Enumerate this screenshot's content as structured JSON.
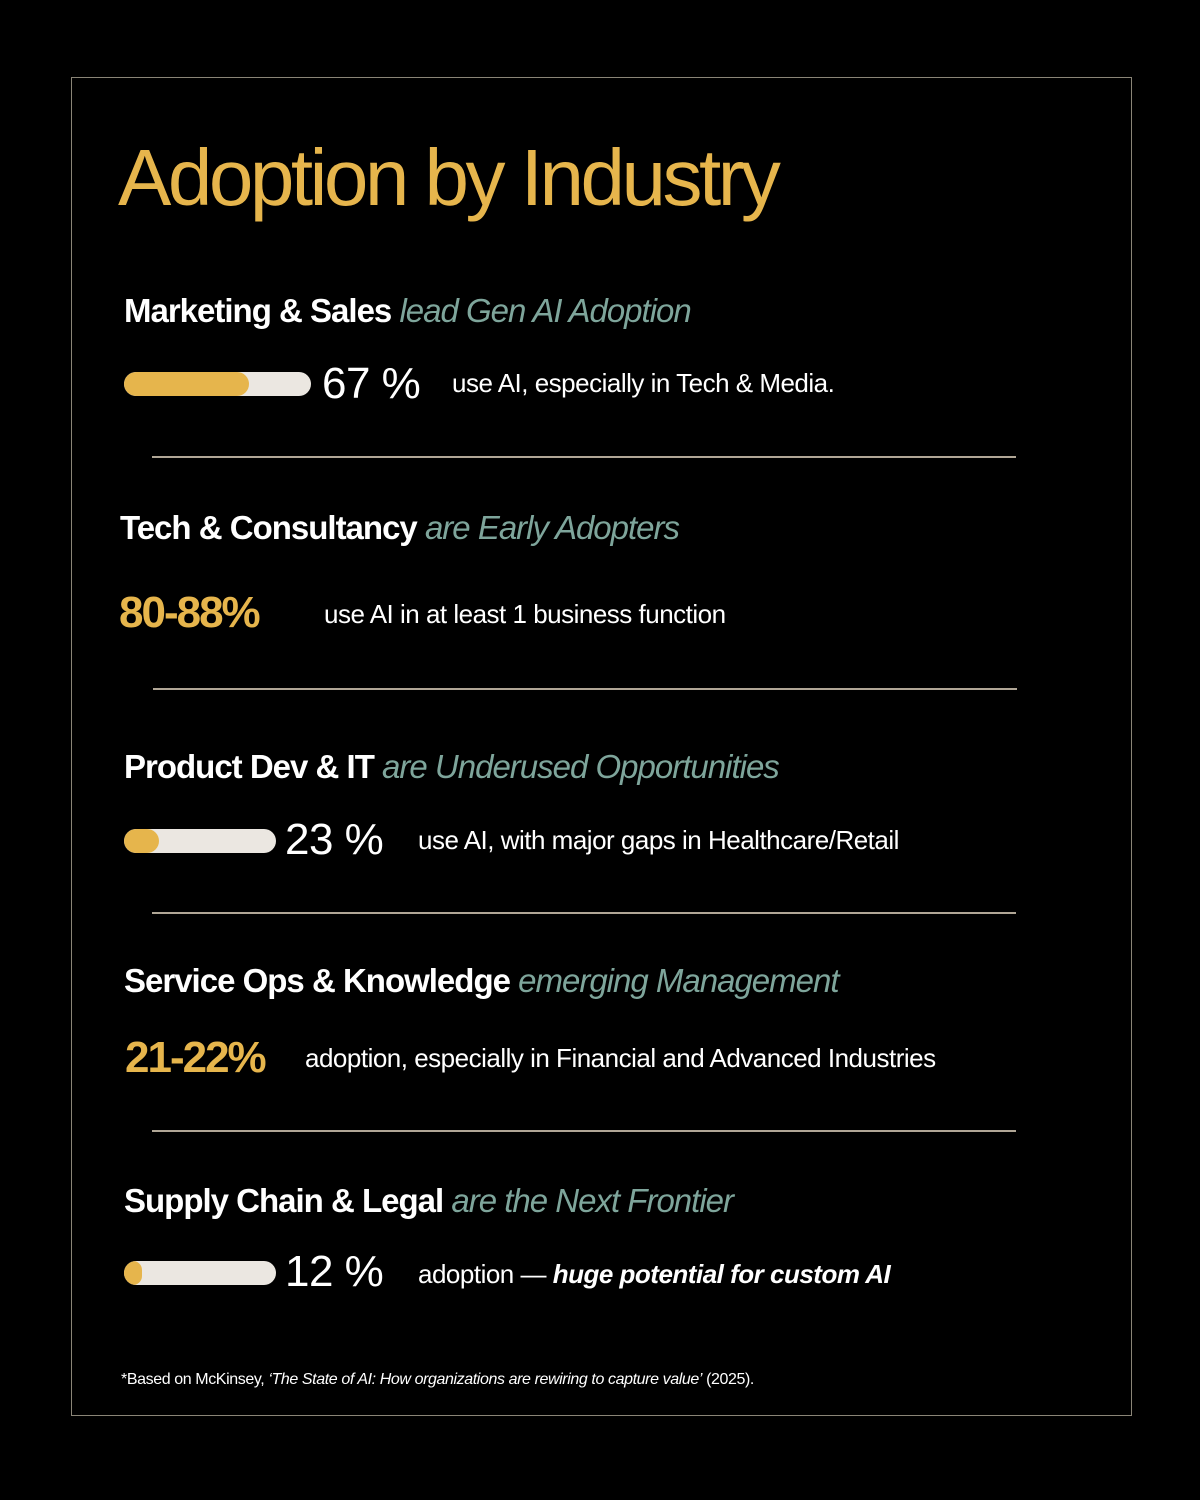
{
  "title": "Adoption by Industry",
  "colors": {
    "background": "#000000",
    "gold": "#e6b54c",
    "teal": "#7ea59b",
    "bar_track": "#ebe7e1",
    "divider": "#b0a696"
  },
  "sections": [
    {
      "bold": "Marketing & Sales",
      "italic": "lead Gen AI Adoption",
      "stat": "67 %",
      "progress": 0.67,
      "description": "use AI, especially in Tech & Media."
    },
    {
      "bold": "Tech & Consultancy",
      "italic": "are Early Adopters",
      "stat": "80-88%",
      "description": "use AI in at least 1 business function"
    },
    {
      "bold": "Product Dev & IT",
      "italic": "are Underused Opportunities",
      "stat": "23 %",
      "progress": 0.23,
      "description": "use AI, with major gaps in Healthcare/Retail"
    },
    {
      "bold": "Service Ops & Knowledge",
      "italic": "emerging Management",
      "stat": "21-22%",
      "description": "adoption, especially in Financial and Advanced Industries"
    },
    {
      "bold": "Supply Chain & Legal",
      "italic": "are the Next Frontier",
      "stat": "12 %",
      "progress": 0.12,
      "description_prefix": "adoption —",
      "description_emphasis": "huge potential for custom AI"
    }
  ],
  "footnote": {
    "prefix": "*Based on McKinsey, ",
    "source": "‘The State of AI: How organizations are rewiring to capture value’",
    "suffix": " (2025)."
  }
}
